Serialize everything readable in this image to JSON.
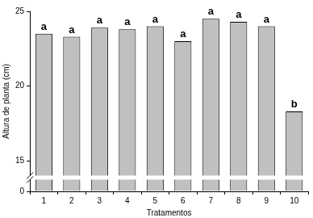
{
  "chart_data": {
    "type": "bar",
    "x_label": "Tratamentos",
    "y_label": "Altura de planta (cm)",
    "categories": [
      "1",
      "2",
      "3",
      "4",
      "5",
      "6",
      "7",
      "8",
      "9",
      "10"
    ],
    "values": [
      23.5,
      23.3,
      23.9,
      23.8,
      24.0,
      23.0,
      24.5,
      24.3,
      24.0,
      18.3
    ],
    "letters": [
      "a",
      "a",
      "a",
      "a",
      "a",
      "a",
      "a",
      "a",
      "a",
      "b"
    ],
    "color": "#c0c0c0",
    "ylim": [
      0,
      25
    ],
    "yticks": [
      0,
      15,
      20,
      25
    ],
    "grid": false
  }
}
